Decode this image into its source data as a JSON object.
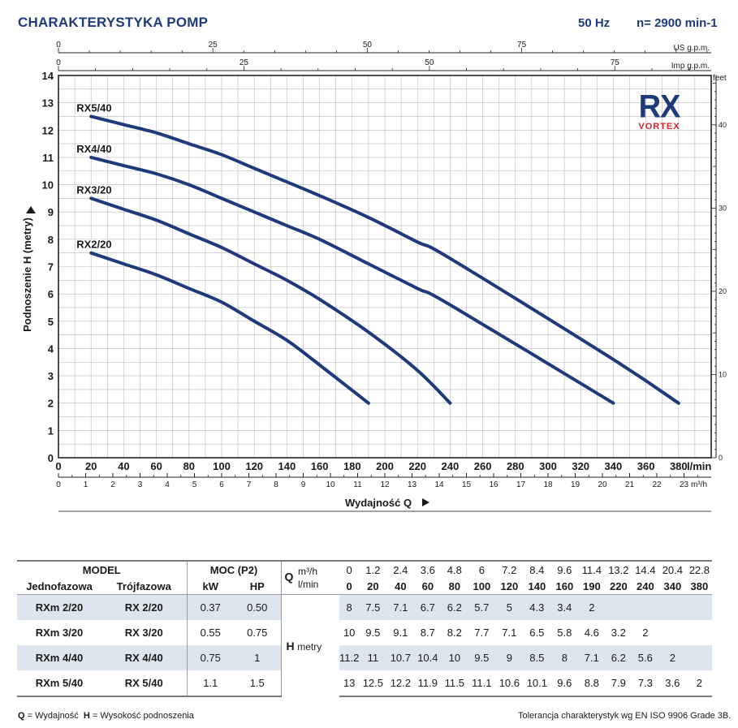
{
  "header": {
    "title": "CHARAKTERYSTYKA POMP",
    "frequency": "50 Hz",
    "speed": "n= 2900 min-1"
  },
  "brand": {
    "logo_text": "RX",
    "sub_text": "VORTEX"
  },
  "chart_data": {
    "type": "line",
    "ylabel": "Podnoszenie H  (metry)",
    "xlabel": "Wydajność Q",
    "x_unit": "l/min",
    "y_unit_right": "feet",
    "xlim": [
      0,
      400
    ],
    "ylim": [
      0,
      14
    ],
    "grid": true,
    "x_ticks": [
      0,
      20,
      40,
      60,
      80,
      100,
      120,
      140,
      160,
      180,
      200,
      220,
      240,
      260,
      280,
      300,
      320,
      340,
      360,
      380
    ],
    "y_ticks": [
      0,
      1,
      2,
      3,
      4,
      5,
      6,
      7,
      8,
      9,
      10,
      11,
      12,
      13,
      14
    ],
    "right_axis": {
      "label": "feet",
      "ticks": [
        0,
        10,
        20,
        30,
        40
      ]
    },
    "top_axis_us": {
      "label": "US g.p.m.",
      "ticks": [
        0,
        25,
        50,
        75
      ]
    },
    "top_axis_imp": {
      "label": "Imp g.p.m.",
      "ticks": [
        0,
        25,
        50,
        75
      ]
    },
    "bottom_axis_m3h": {
      "label": "m³/h",
      "ticks": [
        0,
        1,
        2,
        3,
        4,
        5,
        6,
        7,
        8,
        9,
        10,
        11,
        12,
        13,
        14,
        15,
        16,
        17,
        18,
        19,
        20,
        21,
        22,
        23
      ]
    },
    "series": [
      {
        "name": "RX2/20",
        "x": [
          20,
          40,
          60,
          80,
          100,
          120,
          140,
          160,
          190
        ],
        "y": [
          7.5,
          7.1,
          6.7,
          6.2,
          5.7,
          5.0,
          4.3,
          3.4,
          2.0
        ]
      },
      {
        "name": "RX3/20",
        "x": [
          20,
          40,
          60,
          80,
          100,
          120,
          140,
          160,
          190,
          220,
          240
        ],
        "y": [
          9.5,
          9.1,
          8.7,
          8.2,
          7.7,
          7.1,
          6.5,
          5.8,
          4.6,
          3.2,
          2.0
        ]
      },
      {
        "name": "RX4/40",
        "x": [
          20,
          40,
          60,
          80,
          100,
          120,
          140,
          160,
          190,
          220,
          240,
          340
        ],
        "y": [
          11.0,
          10.7,
          10.4,
          10.0,
          9.5,
          9.0,
          8.5,
          8.0,
          7.1,
          6.2,
          5.6,
          2.0
        ]
      },
      {
        "name": "RX5/40",
        "x": [
          20,
          40,
          60,
          80,
          100,
          120,
          140,
          160,
          190,
          220,
          240,
          340,
          380
        ],
        "y": [
          12.5,
          12.2,
          11.9,
          11.5,
          11.1,
          10.6,
          10.1,
          9.6,
          8.8,
          7.9,
          7.3,
          3.6,
          2.0
        ]
      }
    ],
    "line_color": "#1f3a7a"
  },
  "table": {
    "model_header": "MODEL",
    "power_header": "MOC (P2)",
    "single_phase": "Jednofazowa",
    "three_phase": "Trójfazowa",
    "kw": "kW",
    "hp": "HP",
    "q_symbol": "Q",
    "q_unit_m3h": "m³/h",
    "q_unit_lmin": "l/min",
    "h_symbol": "H",
    "h_unit": "metry",
    "q_m3h": [
      "0",
      "1.2",
      "2.4",
      "3.6",
      "4.8",
      "6",
      "7.2",
      "8.4",
      "9.6",
      "11.4",
      "13.2",
      "14.4",
      "20.4",
      "22.8"
    ],
    "q_lmin": [
      "0",
      "20",
      "40",
      "60",
      "80",
      "100",
      "120",
      "140",
      "160",
      "190",
      "220",
      "240",
      "340",
      "380"
    ],
    "rows": [
      {
        "single": "RXm 2/20",
        "three": "RX 2/20",
        "kw": "0.37",
        "hp": "0.50",
        "h": [
          "8",
          "7.5",
          "7.1",
          "6.7",
          "6.2",
          "5.7",
          "5",
          "4.3",
          "3.4",
          "2",
          "",
          "",
          "",
          ""
        ]
      },
      {
        "single": "RXm 3/20",
        "three": "RX 3/20",
        "kw": "0.55",
        "hp": "0.75",
        "h": [
          "10",
          "9.5",
          "9.1",
          "8.7",
          "8.2",
          "7.7",
          "7.1",
          "6.5",
          "5.8",
          "4.6",
          "3.2",
          "2",
          "",
          ""
        ]
      },
      {
        "single": "RXm 4/40",
        "three": "RX 4/40",
        "kw": "0.75",
        "hp": "1",
        "h": [
          "11.2",
          "11",
          "10.7",
          "10.4",
          "10",
          "9.5",
          "9",
          "8.5",
          "8",
          "7.1",
          "6.2",
          "5.6",
          "2",
          ""
        ]
      },
      {
        "single": "RXm 5/40",
        "three": "RX 5/40",
        "kw": "1.1",
        "hp": "1.5",
        "h": [
          "13",
          "12.5",
          "12.2",
          "11.9",
          "11.5",
          "11.1",
          "10.6",
          "10.1",
          "9.6",
          "8.8",
          "7.9",
          "7.3",
          "3.6",
          "2"
        ]
      }
    ]
  },
  "footer": {
    "legend_q": "Q",
    "legend_q_text": " = Wydajność  ",
    "legend_h": "H",
    "legend_h_text": " = Wysokość podnoszenia",
    "tolerance": "Tolerancja charakterystyk wg EN ISO 9906 Grade 3B."
  }
}
